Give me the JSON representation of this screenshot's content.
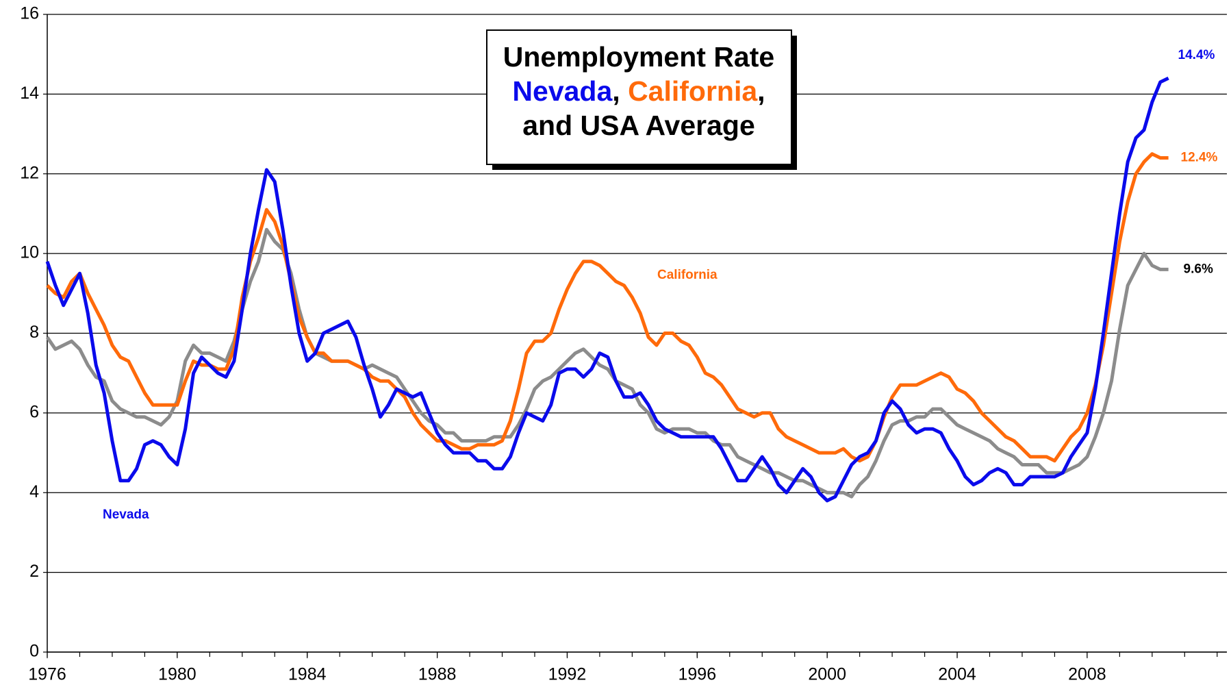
{
  "chart_data": {
    "type": "line",
    "title": [
      [
        "Unemployment Rate"
      ],
      [
        "Nevada",
        ", ",
        "California",
        ","
      ],
      [
        "and USA Average"
      ]
    ],
    "x": [
      1976,
      1976.25,
      1976.5,
      1976.75,
      1977,
      1977.25,
      1977.5,
      1977.75,
      1978,
      1978.25,
      1978.5,
      1978.75,
      1979,
      1979.25,
      1979.5,
      1979.75,
      1980,
      1980.25,
      1980.5,
      1980.75,
      1981,
      1981.25,
      1981.5,
      1981.75,
      1982,
      1982.25,
      1982.5,
      1982.75,
      1983,
      1983.25,
      1983.5,
      1983.75,
      1984,
      1984.25,
      1984.5,
      1984.75,
      1985,
      1985.25,
      1985.5,
      1985.75,
      1986,
      1986.25,
      1986.5,
      1986.75,
      1987,
      1987.25,
      1987.5,
      1987.75,
      1988,
      1988.25,
      1988.5,
      1988.75,
      1989,
      1989.25,
      1989.5,
      1989.75,
      1990,
      1990.25,
      1990.5,
      1990.75,
      1991,
      1991.25,
      1991.5,
      1991.75,
      1992,
      1992.25,
      1992.5,
      1992.75,
      1993,
      1993.25,
      1993.5,
      1993.75,
      1994,
      1994.25,
      1994.5,
      1994.75,
      1995,
      1995.25,
      1995.5,
      1995.75,
      1996,
      1996.25,
      1996.5,
      1996.75,
      1997,
      1997.25,
      1997.5,
      1997.75,
      1998,
      1998.25,
      1998.5,
      1998.75,
      1999,
      1999.25,
      1999.5,
      1999.75,
      2000,
      2000.25,
      2000.5,
      2000.75,
      2001,
      2001.25,
      2001.5,
      2001.75,
      2002,
      2002.25,
      2002.5,
      2002.75,
      2003,
      2003.25,
      2003.5,
      2003.75,
      2004,
      2004.25,
      2004.5,
      2004.75,
      2005,
      2005.25,
      2005.5,
      2005.75,
      2006,
      2006.25,
      2006.5,
      2006.75,
      2007,
      2007.25,
      2007.5,
      2007.75,
      2008,
      2008.25,
      2008.5,
      2008.75,
      2009,
      2009.25,
      2009.5,
      2009.75,
      2010,
      2010.25,
      2010.5
    ],
    "series": [
      {
        "name": "Nevada",
        "color": "#0a0aeb",
        "end_label": "14.4%",
        "label_color": "#0a0aeb",
        "values": [
          9.8,
          9.2,
          8.7,
          9.1,
          9.5,
          8.5,
          7.2,
          6.5,
          5.3,
          4.3,
          4.3,
          4.6,
          5.2,
          5.3,
          5.2,
          4.9,
          4.7,
          5.6,
          7.0,
          7.4,
          7.2,
          7.0,
          6.9,
          7.3,
          8.6,
          10.0,
          11.1,
          12.1,
          11.8,
          10.6,
          9.2,
          8.0,
          7.3,
          7.5,
          8.0,
          8.1,
          8.2,
          8.3,
          7.9,
          7.2,
          6.6,
          5.9,
          6.2,
          6.6,
          6.5,
          6.4,
          6.5,
          6.0,
          5.5,
          5.2,
          5.0,
          5.0,
          5.0,
          4.8,
          4.8,
          4.6,
          4.6,
          4.9,
          5.5,
          6.0,
          5.9,
          5.8,
          6.2,
          7.0,
          7.1,
          7.1,
          6.9,
          7.1,
          7.5,
          7.4,
          6.8,
          6.4,
          6.4,
          6.5,
          6.2,
          5.8,
          5.6,
          5.5,
          5.4,
          5.4,
          5.4,
          5.4,
          5.4,
          5.1,
          4.7,
          4.3,
          4.3,
          4.6,
          4.9,
          4.6,
          4.2,
          4.0,
          4.3,
          4.6,
          4.4,
          4.0,
          3.8,
          3.9,
          4.3,
          4.7,
          4.9,
          5.0,
          5.3,
          6.0,
          6.3,
          6.1,
          5.7,
          5.5,
          5.6,
          5.6,
          5.5,
          5.1,
          4.8,
          4.4,
          4.2,
          4.3,
          4.5,
          4.6,
          4.5,
          4.2,
          4.2,
          4.4,
          4.4,
          4.4,
          4.4,
          4.5,
          4.9,
          5.2,
          5.5,
          6.6,
          8.0,
          9.5,
          11.0,
          12.3,
          12.9,
          13.1,
          13.8,
          14.3,
          14.4
        ]
      },
      {
        "name": "California",
        "color": "#ff6a0a",
        "end_label": "12.4%",
        "label_color": "#ff6a0a",
        "values": [
          9.2,
          9.0,
          8.9,
          9.3,
          9.5,
          9.0,
          8.6,
          8.2,
          7.7,
          7.4,
          7.3,
          6.9,
          6.5,
          6.2,
          6.2,
          6.2,
          6.2,
          6.8,
          7.3,
          7.2,
          7.2,
          7.1,
          7.1,
          7.6,
          8.9,
          9.8,
          10.4,
          11.1,
          10.8,
          10.2,
          9.3,
          8.4,
          7.9,
          7.5,
          7.5,
          7.3,
          7.3,
          7.3,
          7.2,
          7.1,
          6.9,
          6.8,
          6.8,
          6.6,
          6.4,
          6.0,
          5.7,
          5.5,
          5.3,
          5.3,
          5.2,
          5.1,
          5.1,
          5.2,
          5.2,
          5.2,
          5.3,
          5.8,
          6.6,
          7.5,
          7.8,
          7.8,
          8.0,
          8.6,
          9.1,
          9.5,
          9.8,
          9.8,
          9.7,
          9.5,
          9.3,
          9.2,
          8.9,
          8.5,
          7.9,
          7.7,
          8.0,
          8.0,
          7.8,
          7.7,
          7.4,
          7.0,
          6.9,
          6.7,
          6.4,
          6.1,
          6.0,
          5.9,
          6.0,
          6.0,
          5.6,
          5.4,
          5.3,
          5.2,
          5.1,
          5.0,
          5.0,
          5.0,
          5.1,
          4.9,
          4.8,
          4.9,
          5.3,
          5.9,
          6.4,
          6.7,
          6.7,
          6.7,
          6.8,
          6.9,
          7.0,
          6.9,
          6.6,
          6.5,
          6.3,
          6.0,
          5.8,
          5.6,
          5.4,
          5.3,
          5.1,
          4.9,
          4.9,
          4.9,
          4.8,
          5.1,
          5.4,
          5.6,
          6.0,
          6.7,
          7.7,
          9.0,
          10.3,
          11.3,
          12.0,
          12.3,
          12.5,
          12.4,
          12.4
        ]
      },
      {
        "name": "USA Average",
        "color": "#8c8c8c",
        "end_label": "9.6%",
        "label_color": "#000000",
        "values": [
          7.9,
          7.6,
          7.7,
          7.8,
          7.6,
          7.2,
          6.9,
          6.8,
          6.3,
          6.1,
          6.0,
          5.9,
          5.9,
          5.8,
          5.7,
          5.9,
          6.3,
          7.3,
          7.7,
          7.5,
          7.5,
          7.4,
          7.3,
          7.8,
          8.6,
          9.3,
          9.8,
          10.6,
          10.3,
          10.1,
          9.5,
          8.6,
          7.9,
          7.5,
          7.4,
          7.3,
          7.3,
          7.3,
          7.2,
          7.1,
          7.2,
          7.1,
          7.0,
          6.9,
          6.6,
          6.3,
          6.0,
          5.8,
          5.7,
          5.5,
          5.5,
          5.3,
          5.3,
          5.3,
          5.3,
          5.4,
          5.4,
          5.4,
          5.7,
          6.1,
          6.6,
          6.8,
          6.9,
          7.1,
          7.3,
          7.5,
          7.6,
          7.4,
          7.2,
          7.1,
          6.8,
          6.7,
          6.6,
          6.2,
          6.0,
          5.6,
          5.5,
          5.6,
          5.6,
          5.6,
          5.5,
          5.5,
          5.3,
          5.2,
          5.2,
          4.9,
          4.8,
          4.7,
          4.6,
          4.5,
          4.5,
          4.4,
          4.3,
          4.3,
          4.2,
          4.1,
          4.0,
          4.0,
          4.0,
          3.9,
          4.2,
          4.4,
          4.8,
          5.3,
          5.7,
          5.8,
          5.8,
          5.9,
          5.9,
          6.1,
          6.1,
          5.9,
          5.7,
          5.6,
          5.5,
          5.4,
          5.3,
          5.1,
          5.0,
          4.9,
          4.7,
          4.7,
          4.7,
          4.5,
          4.5,
          4.5,
          4.6,
          4.7,
          4.9,
          5.4,
          6.0,
          6.8,
          8.1,
          9.2,
          9.6,
          10.0,
          9.7,
          9.6,
          9.6
        ]
      }
    ],
    "xlim": [
      1976,
      2012.3
    ],
    "xticks": [
      1976,
      1980,
      1984,
      1988,
      1992,
      1996,
      2000,
      2004,
      2008
    ],
    "xminorticks": [
      1976,
      1977,
      1978,
      1979,
      1980,
      1981,
      1982,
      1983,
      1984,
      1985,
      1986,
      1987,
      1988,
      1989,
      1990,
      1991,
      1992,
      1993,
      1994,
      1995,
      1996,
      1997,
      1998,
      1999,
      2000,
      2001,
      2002,
      2003,
      2004,
      2005,
      2006,
      2007,
      2008,
      2009,
      2010,
      2011,
      2012
    ],
    "ylim": [
      0,
      16
    ],
    "yticks": [
      0,
      2,
      4,
      6,
      8,
      10,
      12,
      14,
      16
    ],
    "grid": true
  }
}
